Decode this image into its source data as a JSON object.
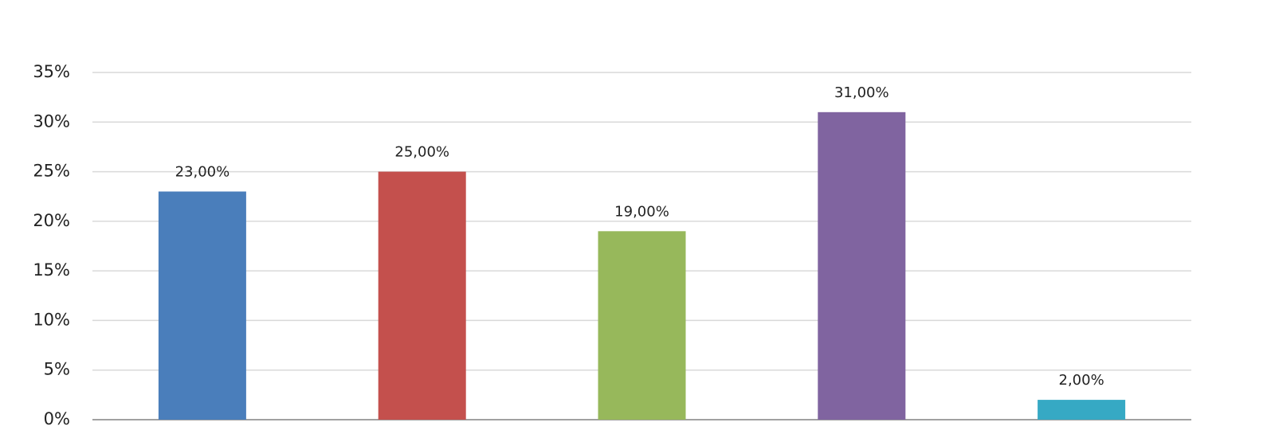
{
  "chart_data": {
    "type": "bar",
    "categories": [
      null,
      null,
      null,
      null,
      null
    ],
    "values": [
      23,
      25,
      19,
      31,
      2
    ],
    "value_labels": [
      "23,00%",
      "25,00%",
      "19,00%",
      "31,00%",
      "2,00%"
    ],
    "colors": [
      "#4a7ebb",
      "#c4504d",
      "#97b85b",
      "#8064a0",
      "#36a9c4"
    ],
    "ylim": [
      0,
      35
    ],
    "yticks": [
      {
        "value": 0,
        "label": "0%"
      },
      {
        "value": 5,
        "label": "5%"
      },
      {
        "value": 10,
        "label": "10%"
      },
      {
        "value": 15,
        "label": "15%"
      },
      {
        "value": 20,
        "label": "20%"
      },
      {
        "value": 25,
        "label": "25%"
      },
      {
        "value": 30,
        "label": "30%"
      },
      {
        "value": 35,
        "label": "35%"
      }
    ],
    "grid": true
  }
}
